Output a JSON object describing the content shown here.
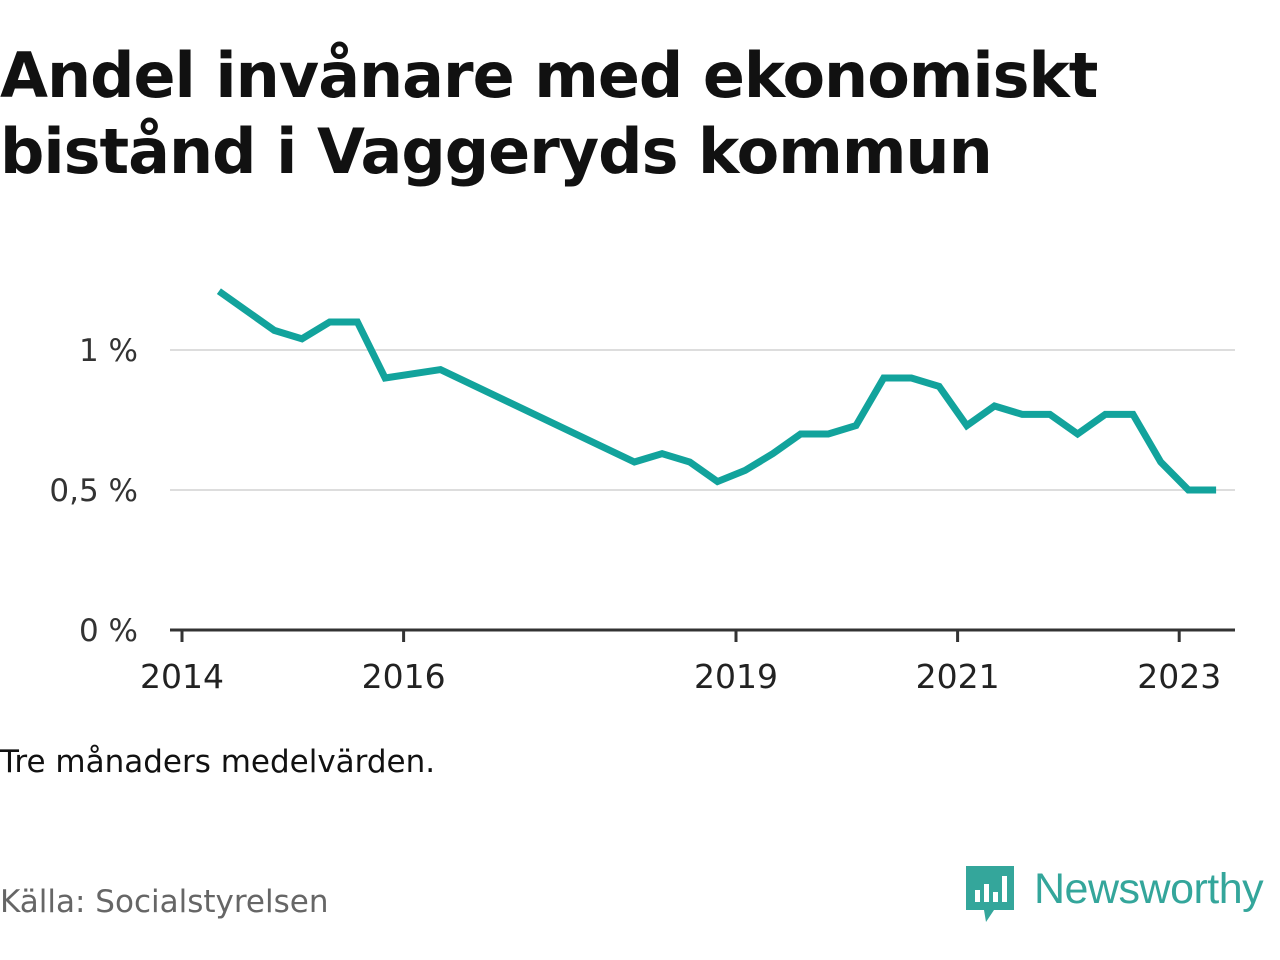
{
  "title": "Andel invånare med ekonomiskt bistånd i Vaggeryds kommun",
  "note": "Tre månaders medelvärden.",
  "source": "Källa: Socialstyrelsen",
  "brand": {
    "name": "Newsworthy",
    "icon": "newsworthy-logo-icon",
    "color": "#34a69b"
  },
  "colors": {
    "line": "#12a39c",
    "grid": "#dddddd",
    "axis": "#333333"
  },
  "chart_data": {
    "type": "line",
    "title": "Andel invånare med ekonomiskt bistånd i Vaggeryds kommun",
    "xlabel": "",
    "ylabel": "",
    "x_ticks": [
      "2014",
      "2016",
      "2019",
      "2021",
      "2023"
    ],
    "y_ticks": [
      "0 %",
      "0,5 %",
      "1 %"
    ],
    "ylim": [
      0,
      1.2
    ],
    "grid": "horizontal",
    "series": [
      {
        "values": [
          {
            "x": "2014-05",
            "y": 1.21
          },
          {
            "x": "2014-08",
            "y": 1.14
          },
          {
            "x": "2014-11",
            "y": 1.07
          },
          {
            "x": "2015-02",
            "y": 1.04
          },
          {
            "x": "2015-05",
            "y": 1.1
          },
          {
            "x": "2015-08",
            "y": 1.1
          },
          {
            "x": "2015-11",
            "y": 0.9
          },
          {
            "x": "2016-05",
            "y": 0.93
          },
          {
            "x": "2018-02",
            "y": 0.6
          },
          {
            "x": "2018-05",
            "y": 0.63
          },
          {
            "x": "2018-08",
            "y": 0.6
          },
          {
            "x": "2018-11",
            "y": 0.53
          },
          {
            "x": "2019-02",
            "y": 0.57
          },
          {
            "x": "2019-05",
            "y": 0.63
          },
          {
            "x": "2019-08",
            "y": 0.7
          },
          {
            "x": "2019-11",
            "y": 0.7
          },
          {
            "x": "2020-02",
            "y": 0.73
          },
          {
            "x": "2020-05",
            "y": 0.9
          },
          {
            "x": "2020-08",
            "y": 0.9
          },
          {
            "x": "2020-11",
            "y": 0.87
          },
          {
            "x": "2021-02",
            "y": 0.73
          },
          {
            "x": "2021-05",
            "y": 0.8
          },
          {
            "x": "2021-08",
            "y": 0.77
          },
          {
            "x": "2021-11",
            "y": 0.77
          },
          {
            "x": "2022-02",
            "y": 0.7
          },
          {
            "x": "2022-05",
            "y": 0.77
          },
          {
            "x": "2022-08",
            "y": 0.77
          },
          {
            "x": "2022-11",
            "y": 0.6
          },
          {
            "x": "2023-02",
            "y": 0.5
          },
          {
            "x": "2023-05",
            "y": 0.5
          }
        ]
      }
    ]
  }
}
